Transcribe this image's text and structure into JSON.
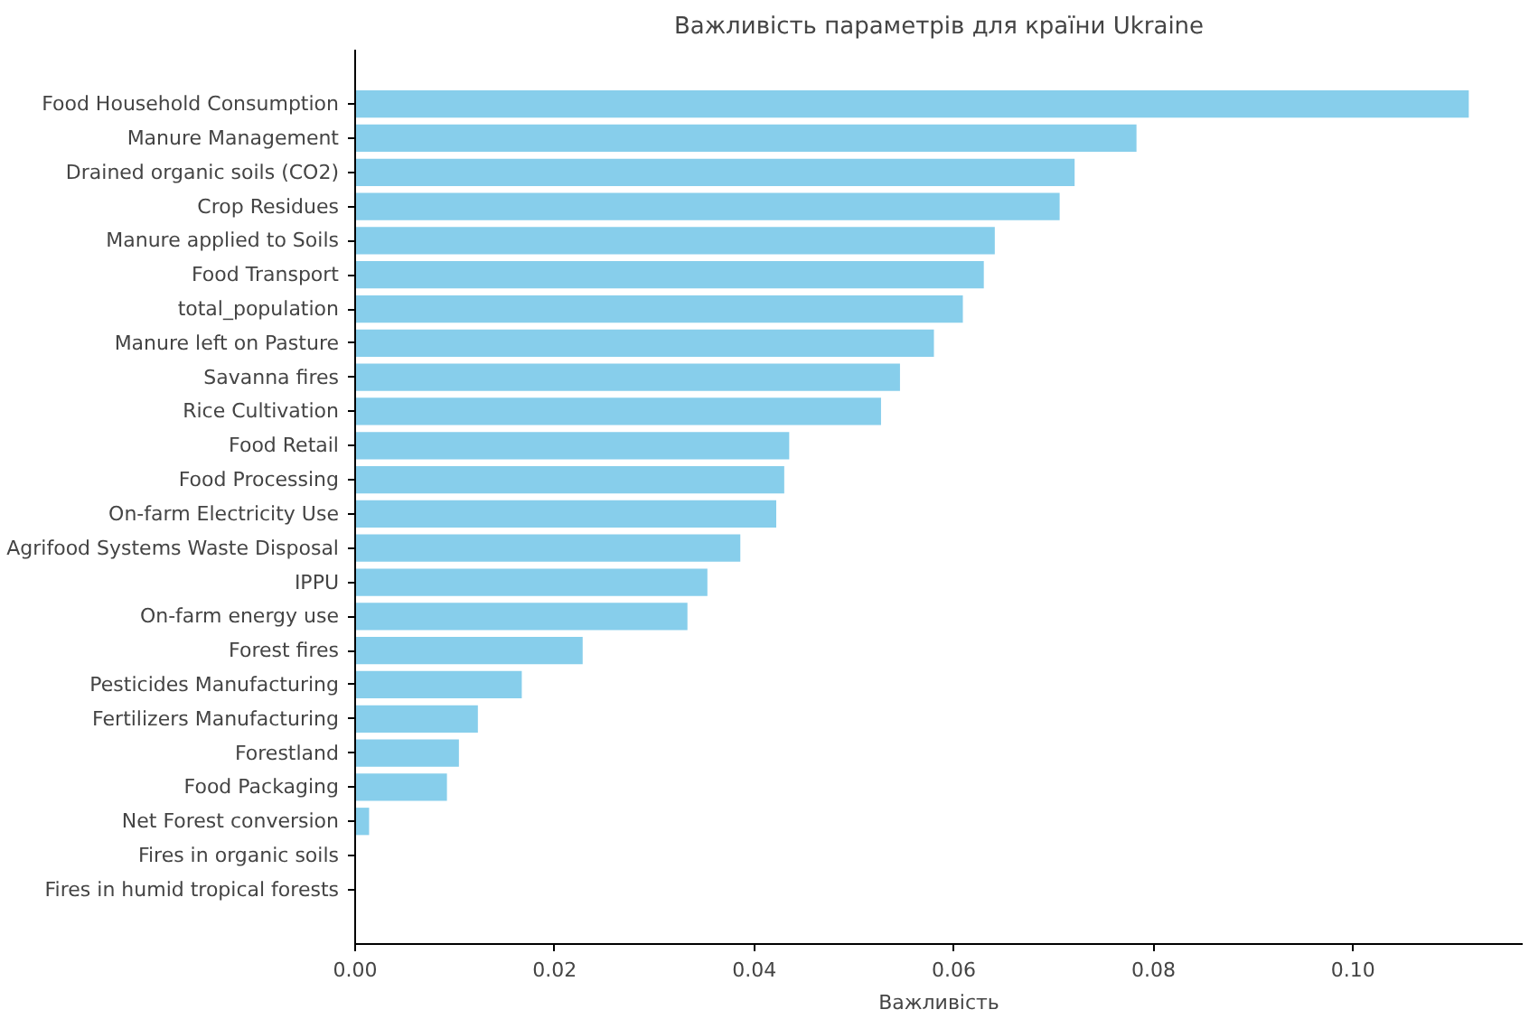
{
  "chart_data": {
    "type": "bar",
    "orientation": "horizontal",
    "title": "Важливість параметрів для країни Ukraine",
    "xlabel": "Важливість",
    "categories": [
      "Food Household Consumption",
      "Manure Management",
      "Drained organic soils (CO2)",
      "Crop Residues",
      "Manure applied to Soils",
      "Food Transport",
      "total_population",
      "Manure left on Pasture",
      "Savanna fires",
      "Rice Cultivation",
      "Food Retail",
      "Food Processing",
      "On-farm Electricity Use",
      "Agrifood Systems Waste Disposal",
      "IPPU",
      "On-farm energy use",
      "Forest fires",
      "Pesticides Manufacturing",
      "Fertilizers Manufacturing",
      "Forestland",
      "Food Packaging",
      "Net Forest conversion",
      "Fires in organic soils",
      "Fires in humid tropical forests"
    ],
    "values": [
      0.1116,
      0.0783,
      0.0721,
      0.0706,
      0.0641,
      0.063,
      0.0609,
      0.058,
      0.0546,
      0.0527,
      0.0435,
      0.043,
      0.0422,
      0.0386,
      0.0353,
      0.0333,
      0.0228,
      0.0167,
      0.0123,
      0.0104,
      0.0092,
      0.0014,
      0,
      0
    ],
    "color": "#87ceeb",
    "xlim": [
      0,
      0.117
    ],
    "xticks": [
      {
        "value": 0,
        "label": "0.00"
      },
      {
        "value": 0.02,
        "label": "0.02"
      },
      {
        "value": 0.04,
        "label": "0.04"
      },
      {
        "value": 0.06,
        "label": "0.06"
      },
      {
        "value": 0.08,
        "label": "0.08"
      },
      {
        "value": 0.1,
        "label": "0.10"
      }
    ],
    "grid": false
  }
}
